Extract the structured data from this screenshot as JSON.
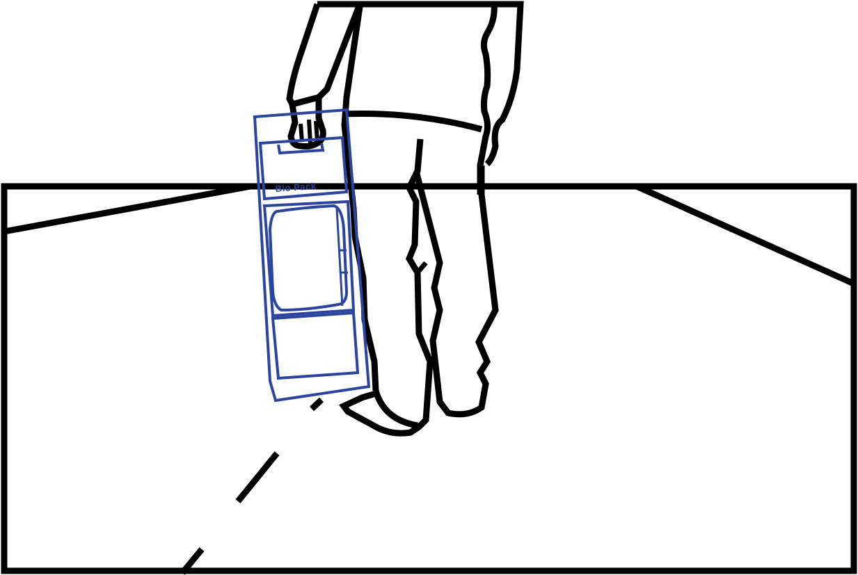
{
  "illustration": {
    "colors": {
      "outline": "#000000",
      "bag_outline": "#2a44a0",
      "background": "#ffffff"
    },
    "bag": {
      "label_text": "Bio Pack"
    }
  }
}
